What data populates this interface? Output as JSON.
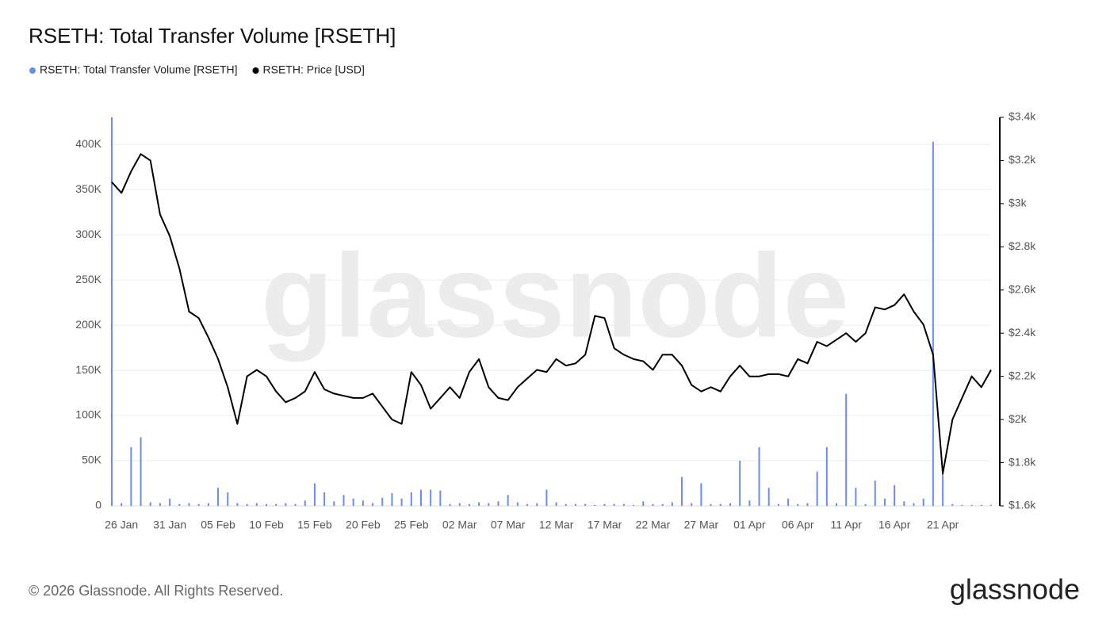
{
  "chart_data": {
    "type": "bar-line",
    "title": "RSETH: Total Transfer Volume [RSETH]",
    "watermark": "glassnode",
    "footer": "© 2026 Glassnode. All Rights Reserved.",
    "logo": "glassnode",
    "legend": "top-left",
    "grid": true,
    "categories": [
      null,
      "26 Jan",
      null,
      null,
      null,
      null,
      "31 Jan",
      null,
      null,
      null,
      null,
      "05 Feb",
      null,
      null,
      null,
      null,
      "10 Feb",
      null,
      null,
      null,
      null,
      "15 Feb",
      null,
      null,
      null,
      null,
      "20 Feb",
      null,
      null,
      null,
      null,
      "25 Feb",
      null,
      null,
      null,
      null,
      "02 Mar",
      null,
      null,
      null,
      null,
      "07 Mar",
      null,
      null,
      null,
      null,
      "12 Mar",
      null,
      null,
      null,
      null,
      "17 Mar",
      null,
      null,
      null,
      null,
      "22 Mar",
      null,
      null,
      null,
      null,
      "27 Mar",
      null,
      null,
      null,
      null,
      "01 Apr",
      null,
      null,
      null,
      null,
      "06 Apr",
      null,
      null,
      null,
      null,
      "11 Apr",
      null,
      null,
      null,
      null,
      "16 Apr",
      null,
      null,
      null,
      null,
      "21 Apr",
      null,
      null,
      null,
      null,
      null
    ],
    "series": [
      {
        "name": "RSETH: Total Transfer Volume [RSETH]",
        "color": "#6b8cef",
        "type": "bar",
        "values": [
          430000,
          3000,
          65000,
          76000,
          4000,
          3000,
          8000,
          2000,
          3000,
          2000,
          3000,
          20000,
          15000,
          3000,
          2000,
          3000,
          2000,
          2000,
          3000,
          2000,
          6000,
          25000,
          15000,
          5000,
          12000,
          8000,
          6000,
          3000,
          9000,
          14000,
          8000,
          15000,
          18000,
          18000,
          17000,
          2000,
          3000,
          2000,
          4000,
          3000,
          5000,
          12000,
          4000,
          2000,
          3000,
          18000,
          4000,
          2000,
          2000,
          2000,
          1000,
          2000,
          2000,
          2000,
          1000,
          5000,
          2000,
          2000,
          4000,
          32000,
          3000,
          25000,
          2000,
          2000,
          3000,
          50000,
          6000,
          65000,
          20000,
          2000,
          8000,
          2000,
          3000,
          38000,
          65000,
          3000,
          124000,
          20000,
          2000,
          28000,
          8000,
          23000,
          5000,
          3000,
          8000,
          403000,
          42000,
          2000,
          1000,
          1000,
          1000,
          1000
        ]
      },
      {
        "name": "RSETH: Price [USD]",
        "color": "#000000",
        "type": "line",
        "axis": "y2",
        "values": [
          3100,
          3050,
          3150,
          3230,
          3200,
          2950,
          2850,
          2700,
          2500,
          2470,
          2380,
          2280,
          2150,
          1980,
          2200,
          2230,
          2200,
          2130,
          2080,
          2100,
          2130,
          2220,
          2140,
          2120,
          2110,
          2100,
          2100,
          2120,
          2060,
          2000,
          1980,
          2220,
          2160,
          2050,
          2100,
          2150,
          2100,
          2220,
          2280,
          2150,
          2100,
          2090,
          2150,
          2190,
          2230,
          2220,
          2280,
          2250,
          2260,
          2300,
          2480,
          2470,
          2330,
          2300,
          2280,
          2270,
          2230,
          2300,
          2300,
          2250,
          2160,
          2130,
          2150,
          2130,
          2200,
          2250,
          2200,
          2200,
          2210,
          2210,
          2200,
          2280,
          2260,
          2360,
          2340,
          2370,
          2400,
          2360,
          2400,
          2520,
          2510,
          2530,
          2580,
          2500,
          2440,
          2300,
          1750,
          2000,
          2100,
          2200,
          2150,
          2230
        ]
      }
    ],
    "ylim": [
      0,
      430000
    ],
    "yticks": [
      0,
      {
        "value": 50000,
        "label": "50K"
      },
      {
        "value": 100000,
        "label": "100K"
      },
      {
        "value": 150000,
        "label": "150K"
      },
      {
        "value": 200000,
        "label": "200K"
      },
      {
        "value": 250000,
        "label": "250K"
      },
      {
        "value": 300000,
        "label": "300K"
      },
      {
        "value": 350000,
        "label": "350K"
      },
      {
        "value": 400000,
        "label": "400K"
      }
    ],
    "y2lim": [
      1600,
      3400
    ],
    "y2ticks": [
      {
        "value": 1600,
        "label": "$1.6k"
      },
      {
        "value": 1800,
        "label": "$1.8k"
      },
      {
        "value": 2000,
        "label": "$2k"
      },
      {
        "value": 2200,
        "label": "$2.2k"
      },
      {
        "value": 2400,
        "label": "$2.4k"
      },
      {
        "value": 2600,
        "label": "$2.6k"
      },
      {
        "value": 2800,
        "label": "$2.8k"
      },
      {
        "value": 3000,
        "label": "$3k"
      },
      {
        "value": 3200,
        "label": "$3.2k"
      },
      {
        "value": 3400,
        "label": "$3.4k"
      }
    ]
  }
}
